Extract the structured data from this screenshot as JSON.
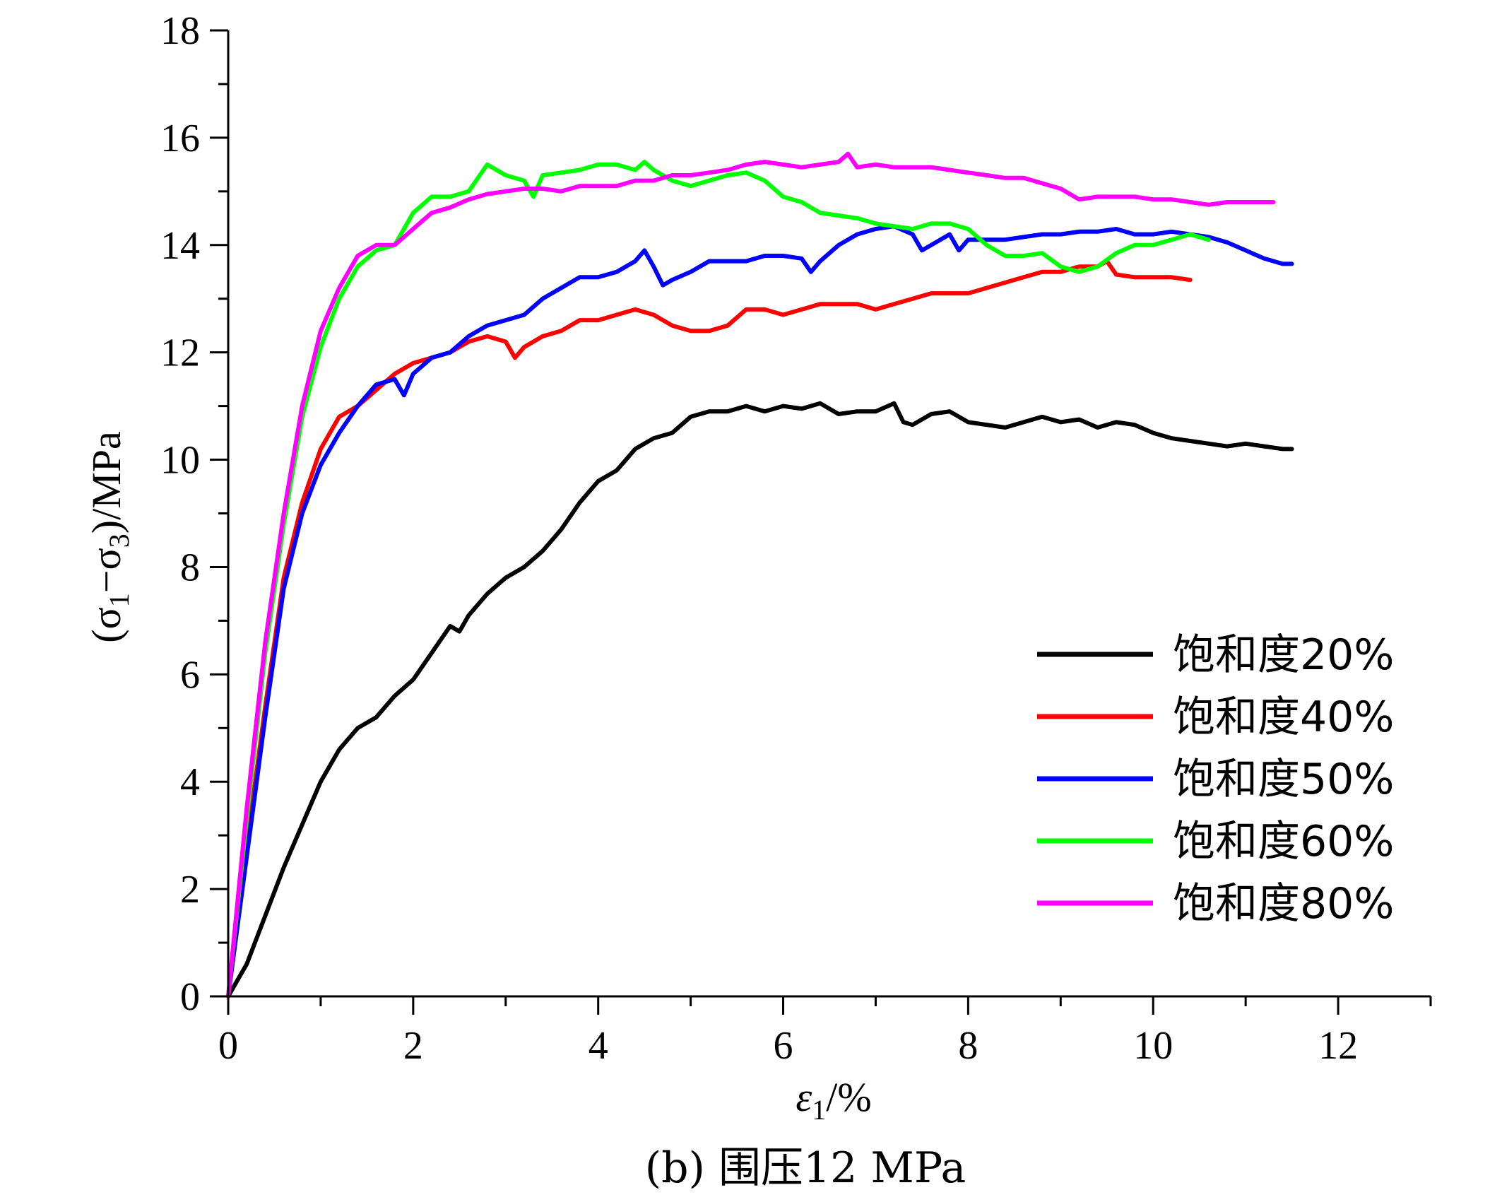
{
  "chart_data": {
    "type": "line",
    "xlabel": {
      "symbol": "ε",
      "sub": "1",
      "rest": "/%"
    },
    "ylabel": {
      "p1": "(σ",
      "s1": "1",
      "p2": "−σ",
      "s2": "3",
      "p3": ")/MPa"
    },
    "caption": "(b) 围压12 MPa",
    "xlim": [
      0,
      13
    ],
    "ylim": [
      0,
      18
    ],
    "x_ticks": [
      0,
      2,
      4,
      6,
      8,
      10,
      12
    ],
    "x_tick_labels": [
      "0",
      "2",
      "4",
      "6",
      "8",
      "10",
      "12"
    ],
    "y_ticks": [
      0,
      2,
      4,
      6,
      8,
      10,
      12,
      14,
      16,
      18
    ],
    "y_tick_labels": [
      "0",
      "2",
      "4",
      "6",
      "8",
      "10",
      "12",
      "14",
      "16",
      "18"
    ],
    "legend_position": "center-right",
    "series": [
      {
        "name": "饱和度20%",
        "color": "#000000",
        "points": [
          [
            0,
            0
          ],
          [
            0.2,
            0.6
          ],
          [
            0.4,
            1.5
          ],
          [
            0.6,
            2.4
          ],
          [
            0.8,
            3.2
          ],
          [
            1.0,
            4.0
          ],
          [
            1.2,
            4.6
          ],
          [
            1.4,
            5.0
          ],
          [
            1.6,
            5.2
          ],
          [
            1.8,
            5.6
          ],
          [
            2.0,
            5.9
          ],
          [
            2.2,
            6.4
          ],
          [
            2.4,
            6.9
          ],
          [
            2.5,
            6.8
          ],
          [
            2.6,
            7.1
          ],
          [
            2.8,
            7.5
          ],
          [
            3.0,
            7.8
          ],
          [
            3.2,
            8.0
          ],
          [
            3.4,
            8.3
          ],
          [
            3.6,
            8.7
          ],
          [
            3.8,
            9.2
          ],
          [
            4.0,
            9.6
          ],
          [
            4.2,
            9.8
          ],
          [
            4.4,
            10.2
          ],
          [
            4.6,
            10.4
          ],
          [
            4.8,
            10.5
          ],
          [
            5.0,
            10.8
          ],
          [
            5.2,
            10.9
          ],
          [
            5.4,
            10.9
          ],
          [
            5.6,
            11.0
          ],
          [
            5.8,
            10.9
          ],
          [
            6.0,
            11.0
          ],
          [
            6.2,
            10.95
          ],
          [
            6.4,
            11.05
          ],
          [
            6.6,
            10.85
          ],
          [
            6.8,
            10.9
          ],
          [
            7.0,
            10.9
          ],
          [
            7.2,
            11.05
          ],
          [
            7.3,
            10.7
          ],
          [
            7.4,
            10.65
          ],
          [
            7.6,
            10.85
          ],
          [
            7.8,
            10.9
          ],
          [
            8.0,
            10.7
          ],
          [
            8.2,
            10.65
          ],
          [
            8.4,
            10.6
          ],
          [
            8.6,
            10.7
          ],
          [
            8.8,
            10.8
          ],
          [
            9.0,
            10.7
          ],
          [
            9.2,
            10.75
          ],
          [
            9.4,
            10.6
          ],
          [
            9.6,
            10.7
          ],
          [
            9.8,
            10.65
          ],
          [
            10.0,
            10.5
          ],
          [
            10.2,
            10.4
          ],
          [
            10.4,
            10.35
          ],
          [
            10.6,
            10.3
          ],
          [
            10.8,
            10.25
          ],
          [
            11.0,
            10.3
          ],
          [
            11.2,
            10.25
          ],
          [
            11.4,
            10.2
          ],
          [
            11.5,
            10.2
          ]
        ]
      },
      {
        "name": "饱和度40%",
        "color": "#ff0000",
        "points": [
          [
            0,
            0
          ],
          [
            0.2,
            2.8
          ],
          [
            0.4,
            5.4
          ],
          [
            0.6,
            7.8
          ],
          [
            0.8,
            9.2
          ],
          [
            1.0,
            10.2
          ],
          [
            1.2,
            10.8
          ],
          [
            1.4,
            11.0
          ],
          [
            1.6,
            11.3
          ],
          [
            1.8,
            11.6
          ],
          [
            2.0,
            11.8
          ],
          [
            2.2,
            11.9
          ],
          [
            2.4,
            12.0
          ],
          [
            2.6,
            12.2
          ],
          [
            2.8,
            12.3
          ],
          [
            3.0,
            12.2
          ],
          [
            3.1,
            11.9
          ],
          [
            3.2,
            12.1
          ],
          [
            3.4,
            12.3
          ],
          [
            3.6,
            12.4
          ],
          [
            3.8,
            12.6
          ],
          [
            4.0,
            12.6
          ],
          [
            4.2,
            12.7
          ],
          [
            4.4,
            12.8
          ],
          [
            4.6,
            12.7
          ],
          [
            4.8,
            12.5
          ],
          [
            5.0,
            12.4
          ],
          [
            5.2,
            12.4
          ],
          [
            5.4,
            12.5
          ],
          [
            5.6,
            12.8
          ],
          [
            5.8,
            12.8
          ],
          [
            6.0,
            12.7
          ],
          [
            6.2,
            12.8
          ],
          [
            6.4,
            12.9
          ],
          [
            6.6,
            12.9
          ],
          [
            6.8,
            12.9
          ],
          [
            7.0,
            12.8
          ],
          [
            7.2,
            12.9
          ],
          [
            7.4,
            13.0
          ],
          [
            7.6,
            13.1
          ],
          [
            7.8,
            13.1
          ],
          [
            8.0,
            13.1
          ],
          [
            8.2,
            13.2
          ],
          [
            8.4,
            13.3
          ],
          [
            8.6,
            13.4
          ],
          [
            8.8,
            13.5
          ],
          [
            9.0,
            13.5
          ],
          [
            9.2,
            13.6
          ],
          [
            9.4,
            13.6
          ],
          [
            9.5,
            13.7
          ],
          [
            9.6,
            13.45
          ],
          [
            9.8,
            13.4
          ],
          [
            10.0,
            13.4
          ],
          [
            10.2,
            13.4
          ],
          [
            10.4,
            13.35
          ]
        ]
      },
      {
        "name": "饱和度50%",
        "color": "#0000ff",
        "points": [
          [
            0,
            0
          ],
          [
            0.2,
            2.6
          ],
          [
            0.4,
            5.2
          ],
          [
            0.6,
            7.6
          ],
          [
            0.8,
            9.0
          ],
          [
            1.0,
            9.9
          ],
          [
            1.2,
            10.5
          ],
          [
            1.4,
            11.0
          ],
          [
            1.6,
            11.4
          ],
          [
            1.8,
            11.5
          ],
          [
            1.9,
            11.2
          ],
          [
            2.0,
            11.6
          ],
          [
            2.2,
            11.9
          ],
          [
            2.4,
            12.0
          ],
          [
            2.6,
            12.3
          ],
          [
            2.8,
            12.5
          ],
          [
            3.0,
            12.6
          ],
          [
            3.2,
            12.7
          ],
          [
            3.4,
            13.0
          ],
          [
            3.6,
            13.2
          ],
          [
            3.8,
            13.4
          ],
          [
            4.0,
            13.4
          ],
          [
            4.2,
            13.5
          ],
          [
            4.4,
            13.7
          ],
          [
            4.5,
            13.9
          ],
          [
            4.6,
            13.6
          ],
          [
            4.7,
            13.25
          ],
          [
            4.8,
            13.35
          ],
          [
            5.0,
            13.5
          ],
          [
            5.2,
            13.7
          ],
          [
            5.4,
            13.7
          ],
          [
            5.6,
            13.7
          ],
          [
            5.8,
            13.8
          ],
          [
            6.0,
            13.8
          ],
          [
            6.2,
            13.75
          ],
          [
            6.3,
            13.5
          ],
          [
            6.4,
            13.7
          ],
          [
            6.6,
            14.0
          ],
          [
            6.8,
            14.2
          ],
          [
            7.0,
            14.3
          ],
          [
            7.2,
            14.35
          ],
          [
            7.4,
            14.2
          ],
          [
            7.5,
            13.9
          ],
          [
            7.6,
            14.0
          ],
          [
            7.8,
            14.2
          ],
          [
            7.9,
            13.9
          ],
          [
            8.0,
            14.1
          ],
          [
            8.2,
            14.1
          ],
          [
            8.4,
            14.1
          ],
          [
            8.6,
            14.15
          ],
          [
            8.8,
            14.2
          ],
          [
            9.0,
            14.2
          ],
          [
            9.2,
            14.25
          ],
          [
            9.4,
            14.25
          ],
          [
            9.6,
            14.3
          ],
          [
            9.8,
            14.2
          ],
          [
            10.0,
            14.2
          ],
          [
            10.2,
            14.25
          ],
          [
            10.4,
            14.2
          ],
          [
            10.6,
            14.15
          ],
          [
            10.8,
            14.05
          ],
          [
            11.0,
            13.9
          ],
          [
            11.2,
            13.75
          ],
          [
            11.4,
            13.65
          ],
          [
            11.5,
            13.65
          ]
        ]
      },
      {
        "name": "饱和度60%",
        "color": "#00ff00",
        "points": [
          [
            0,
            0
          ],
          [
            0.2,
            3.3
          ],
          [
            0.4,
            6.4
          ],
          [
            0.6,
            8.8
          ],
          [
            0.8,
            10.8
          ],
          [
            1.0,
            12.1
          ],
          [
            1.2,
            13.0
          ],
          [
            1.4,
            13.6
          ],
          [
            1.6,
            13.9
          ],
          [
            1.8,
            14.0
          ],
          [
            2.0,
            14.6
          ],
          [
            2.2,
            14.9
          ],
          [
            2.4,
            14.9
          ],
          [
            2.6,
            15.0
          ],
          [
            2.8,
            15.5
          ],
          [
            3.0,
            15.3
          ],
          [
            3.2,
            15.2
          ],
          [
            3.3,
            14.9
          ],
          [
            3.4,
            15.3
          ],
          [
            3.6,
            15.35
          ],
          [
            3.8,
            15.4
          ],
          [
            4.0,
            15.5
          ],
          [
            4.2,
            15.5
          ],
          [
            4.4,
            15.4
          ],
          [
            4.5,
            15.55
          ],
          [
            4.6,
            15.4
          ],
          [
            4.8,
            15.2
          ],
          [
            5.0,
            15.1
          ],
          [
            5.2,
            15.2
          ],
          [
            5.4,
            15.3
          ],
          [
            5.6,
            15.35
          ],
          [
            5.8,
            15.2
          ],
          [
            6.0,
            14.9
          ],
          [
            6.2,
            14.8
          ],
          [
            6.4,
            14.6
          ],
          [
            6.6,
            14.55
          ],
          [
            6.8,
            14.5
          ],
          [
            7.0,
            14.4
          ],
          [
            7.2,
            14.35
          ],
          [
            7.4,
            14.3
          ],
          [
            7.6,
            14.4
          ],
          [
            7.8,
            14.4
          ],
          [
            8.0,
            14.3
          ],
          [
            8.2,
            14.0
          ],
          [
            8.4,
            13.8
          ],
          [
            8.6,
            13.8
          ],
          [
            8.8,
            13.85
          ],
          [
            9.0,
            13.6
          ],
          [
            9.2,
            13.5
          ],
          [
            9.4,
            13.6
          ],
          [
            9.6,
            13.85
          ],
          [
            9.8,
            14.0
          ],
          [
            10.0,
            14.0
          ],
          [
            10.2,
            14.1
          ],
          [
            10.4,
            14.2
          ],
          [
            10.6,
            14.1
          ]
        ]
      },
      {
        "name": "饱和度80%",
        "color": "#ff00ff",
        "points": [
          [
            0,
            0
          ],
          [
            0.2,
            3.5
          ],
          [
            0.4,
            6.6
          ],
          [
            0.6,
            9.0
          ],
          [
            0.8,
            11.0
          ],
          [
            1.0,
            12.4
          ],
          [
            1.2,
            13.2
          ],
          [
            1.4,
            13.8
          ],
          [
            1.6,
            14.0
          ],
          [
            1.8,
            14.0
          ],
          [
            2.0,
            14.3
          ],
          [
            2.2,
            14.6
          ],
          [
            2.4,
            14.7
          ],
          [
            2.6,
            14.85
          ],
          [
            2.8,
            14.95
          ],
          [
            3.0,
            15.0
          ],
          [
            3.2,
            15.05
          ],
          [
            3.4,
            15.05
          ],
          [
            3.6,
            15.0
          ],
          [
            3.8,
            15.1
          ],
          [
            4.0,
            15.1
          ],
          [
            4.2,
            15.1
          ],
          [
            4.4,
            15.2
          ],
          [
            4.6,
            15.2
          ],
          [
            4.8,
            15.3
          ],
          [
            5.0,
            15.3
          ],
          [
            5.2,
            15.35
          ],
          [
            5.4,
            15.4
          ],
          [
            5.6,
            15.5
          ],
          [
            5.8,
            15.55
          ],
          [
            6.0,
            15.5
          ],
          [
            6.2,
            15.45
          ],
          [
            6.4,
            15.5
          ],
          [
            6.6,
            15.55
          ],
          [
            6.7,
            15.7
          ],
          [
            6.8,
            15.45
          ],
          [
            7.0,
            15.5
          ],
          [
            7.2,
            15.45
          ],
          [
            7.4,
            15.45
          ],
          [
            7.6,
            15.45
          ],
          [
            7.8,
            15.4
          ],
          [
            8.0,
            15.35
          ],
          [
            8.2,
            15.3
          ],
          [
            8.4,
            15.25
          ],
          [
            8.6,
            15.25
          ],
          [
            8.8,
            15.15
          ],
          [
            9.0,
            15.05
          ],
          [
            9.2,
            14.85
          ],
          [
            9.4,
            14.9
          ],
          [
            9.6,
            14.9
          ],
          [
            9.8,
            14.9
          ],
          [
            10.0,
            14.85
          ],
          [
            10.2,
            14.85
          ],
          [
            10.4,
            14.8
          ],
          [
            10.6,
            14.75
          ],
          [
            10.8,
            14.8
          ],
          [
            11.0,
            14.8
          ],
          [
            11.2,
            14.8
          ],
          [
            11.3,
            14.8
          ]
        ]
      }
    ]
  }
}
